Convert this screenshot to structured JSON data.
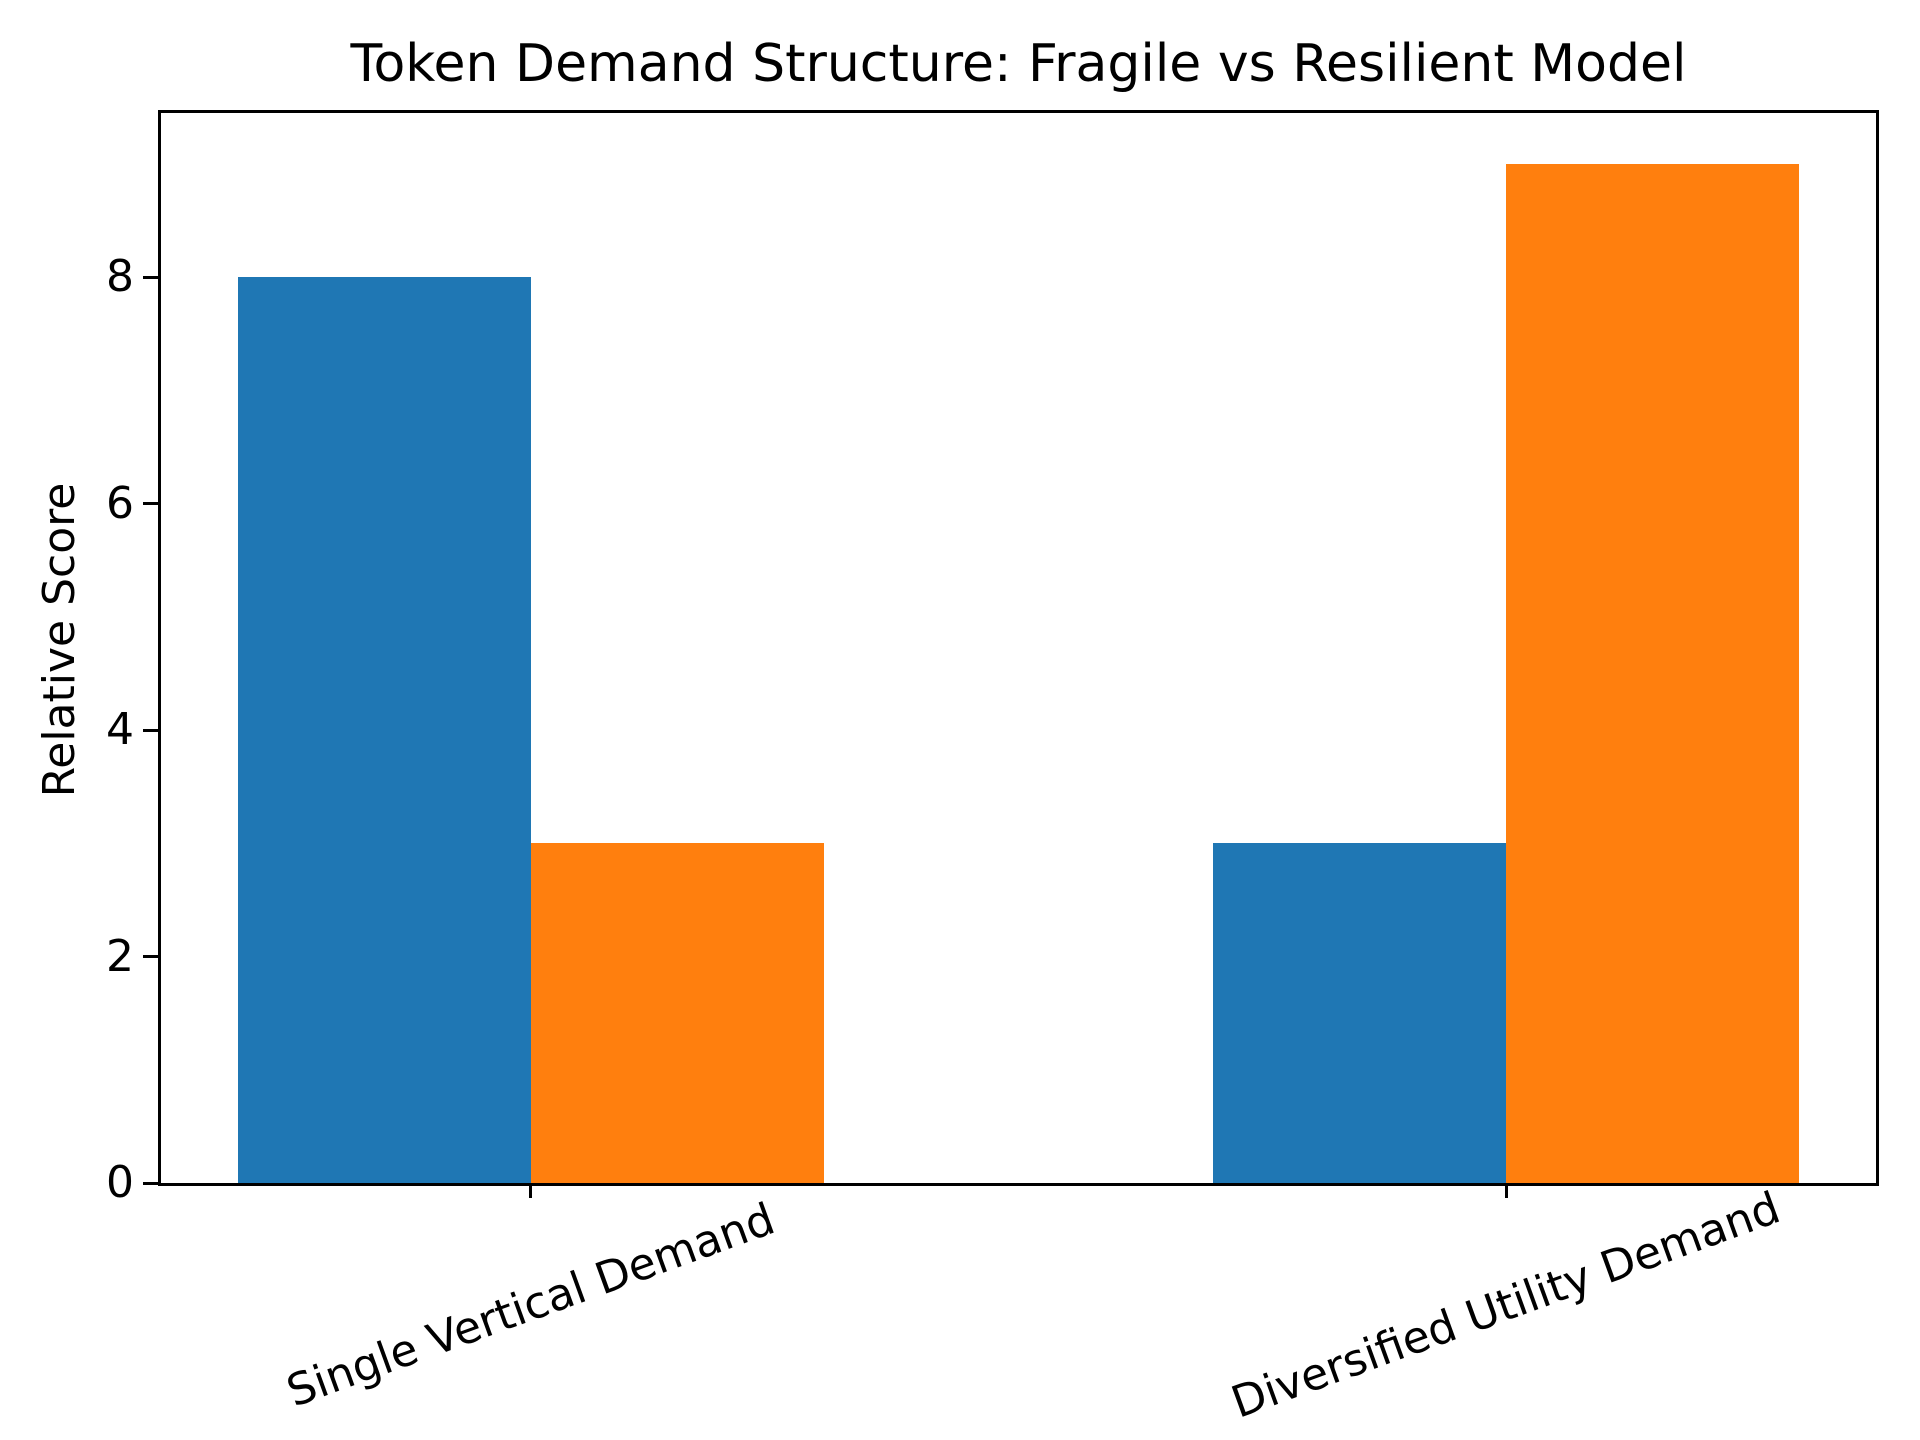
{
  "chart_data": {
    "type": "bar",
    "title": "Token Demand Structure: Fragile vs Resilient Model",
    "xlabel": "",
    "ylabel": "Relative Score",
    "categories": [
      "Single Vertical Demand",
      "Diversified Utility Demand"
    ],
    "series": [
      {
        "name": "blue",
        "color": "#1f77b4",
        "values": [
          8,
          3
        ]
      },
      {
        "name": "orange",
        "color": "#ff7f0e",
        "values": [
          3,
          9
        ]
      }
    ],
    "yticks": [
      0,
      2,
      4,
      6,
      8
    ],
    "ylim": [
      0,
      9.45
    ],
    "grid": false,
    "legend": "none",
    "xtick_rotation_deg": 20,
    "background": "#ffffff",
    "spine_color": "#000000"
  }
}
